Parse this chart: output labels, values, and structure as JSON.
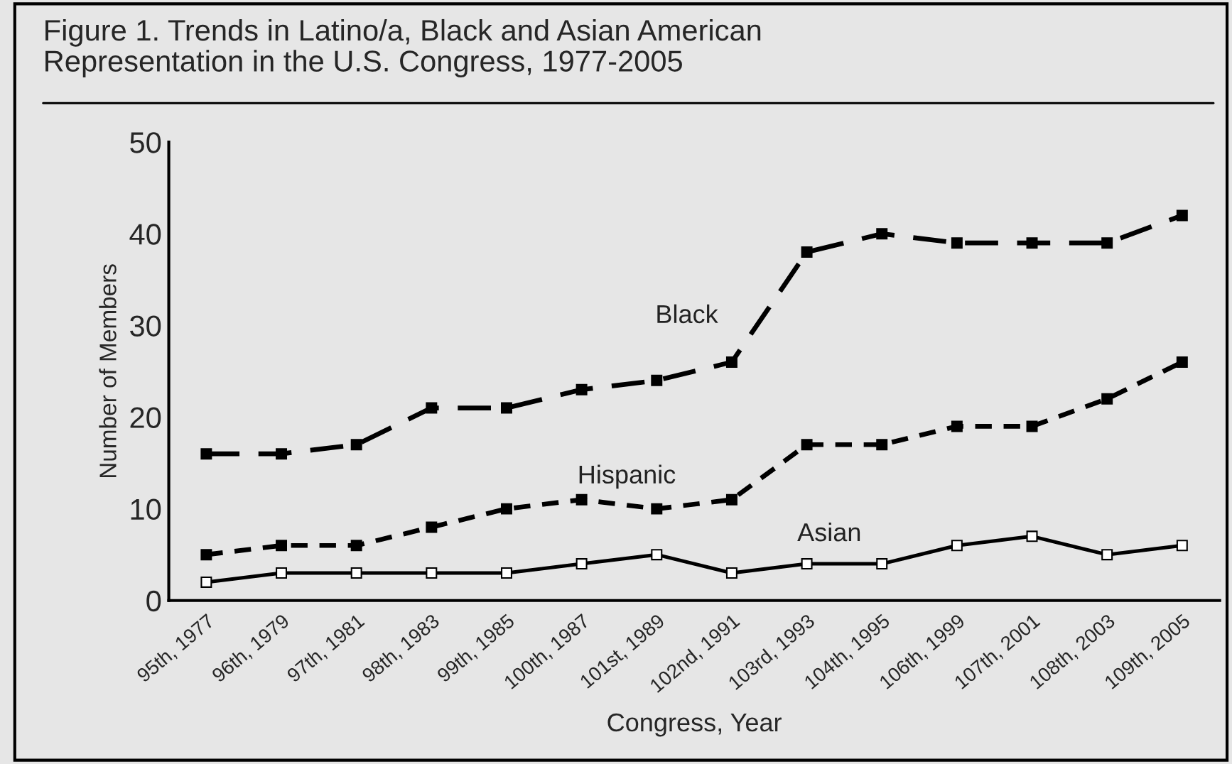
{
  "chart_data": {
    "type": "line",
    "title": "Figure 1. Trends in Latino/a, Black and Asian American\nRepresentation in the U.S. Congress, 1977-2005",
    "xlabel": "Congress, Year",
    "ylabel": "Number of Members",
    "categories": [
      "95th, 1977",
      "96th, 1979",
      "97th, 1981",
      "98th, 1983",
      "99th, 1985",
      "100th, 1987",
      "101st, 1989",
      "102nd, 1991",
      "103rd, 1993",
      "104th, 1995",
      "106th, 1999",
      "107th, 2001",
      "108th, 2003",
      "109th, 2005"
    ],
    "series": [
      {
        "name": "Black",
        "color": "#000000",
        "line_style": "dashed",
        "values": [
          16,
          16,
          17,
          21,
          21,
          23,
          24,
          26,
          38,
          40,
          39,
          39,
          39,
          42
        ]
      },
      {
        "name": "Hispanic",
        "color": "#000000",
        "line_style": "dashed",
        "values": [
          5,
          6,
          6,
          8,
          10,
          11,
          10,
          11,
          17,
          17,
          19,
          19,
          22,
          26
        ]
      },
      {
        "name": "Asian",
        "color": "#000000",
        "line_style": "solid",
        "values": [
          2,
          3,
          3,
          3,
          3,
          4,
          5,
          3,
          4,
          4,
          6,
          7,
          5,
          6
        ]
      }
    ],
    "marker": "square",
    "ylim": [
      0,
      50
    ],
    "yticks": [
      0,
      10,
      20,
      30,
      40,
      50
    ],
    "grid": false,
    "legend": false
  }
}
